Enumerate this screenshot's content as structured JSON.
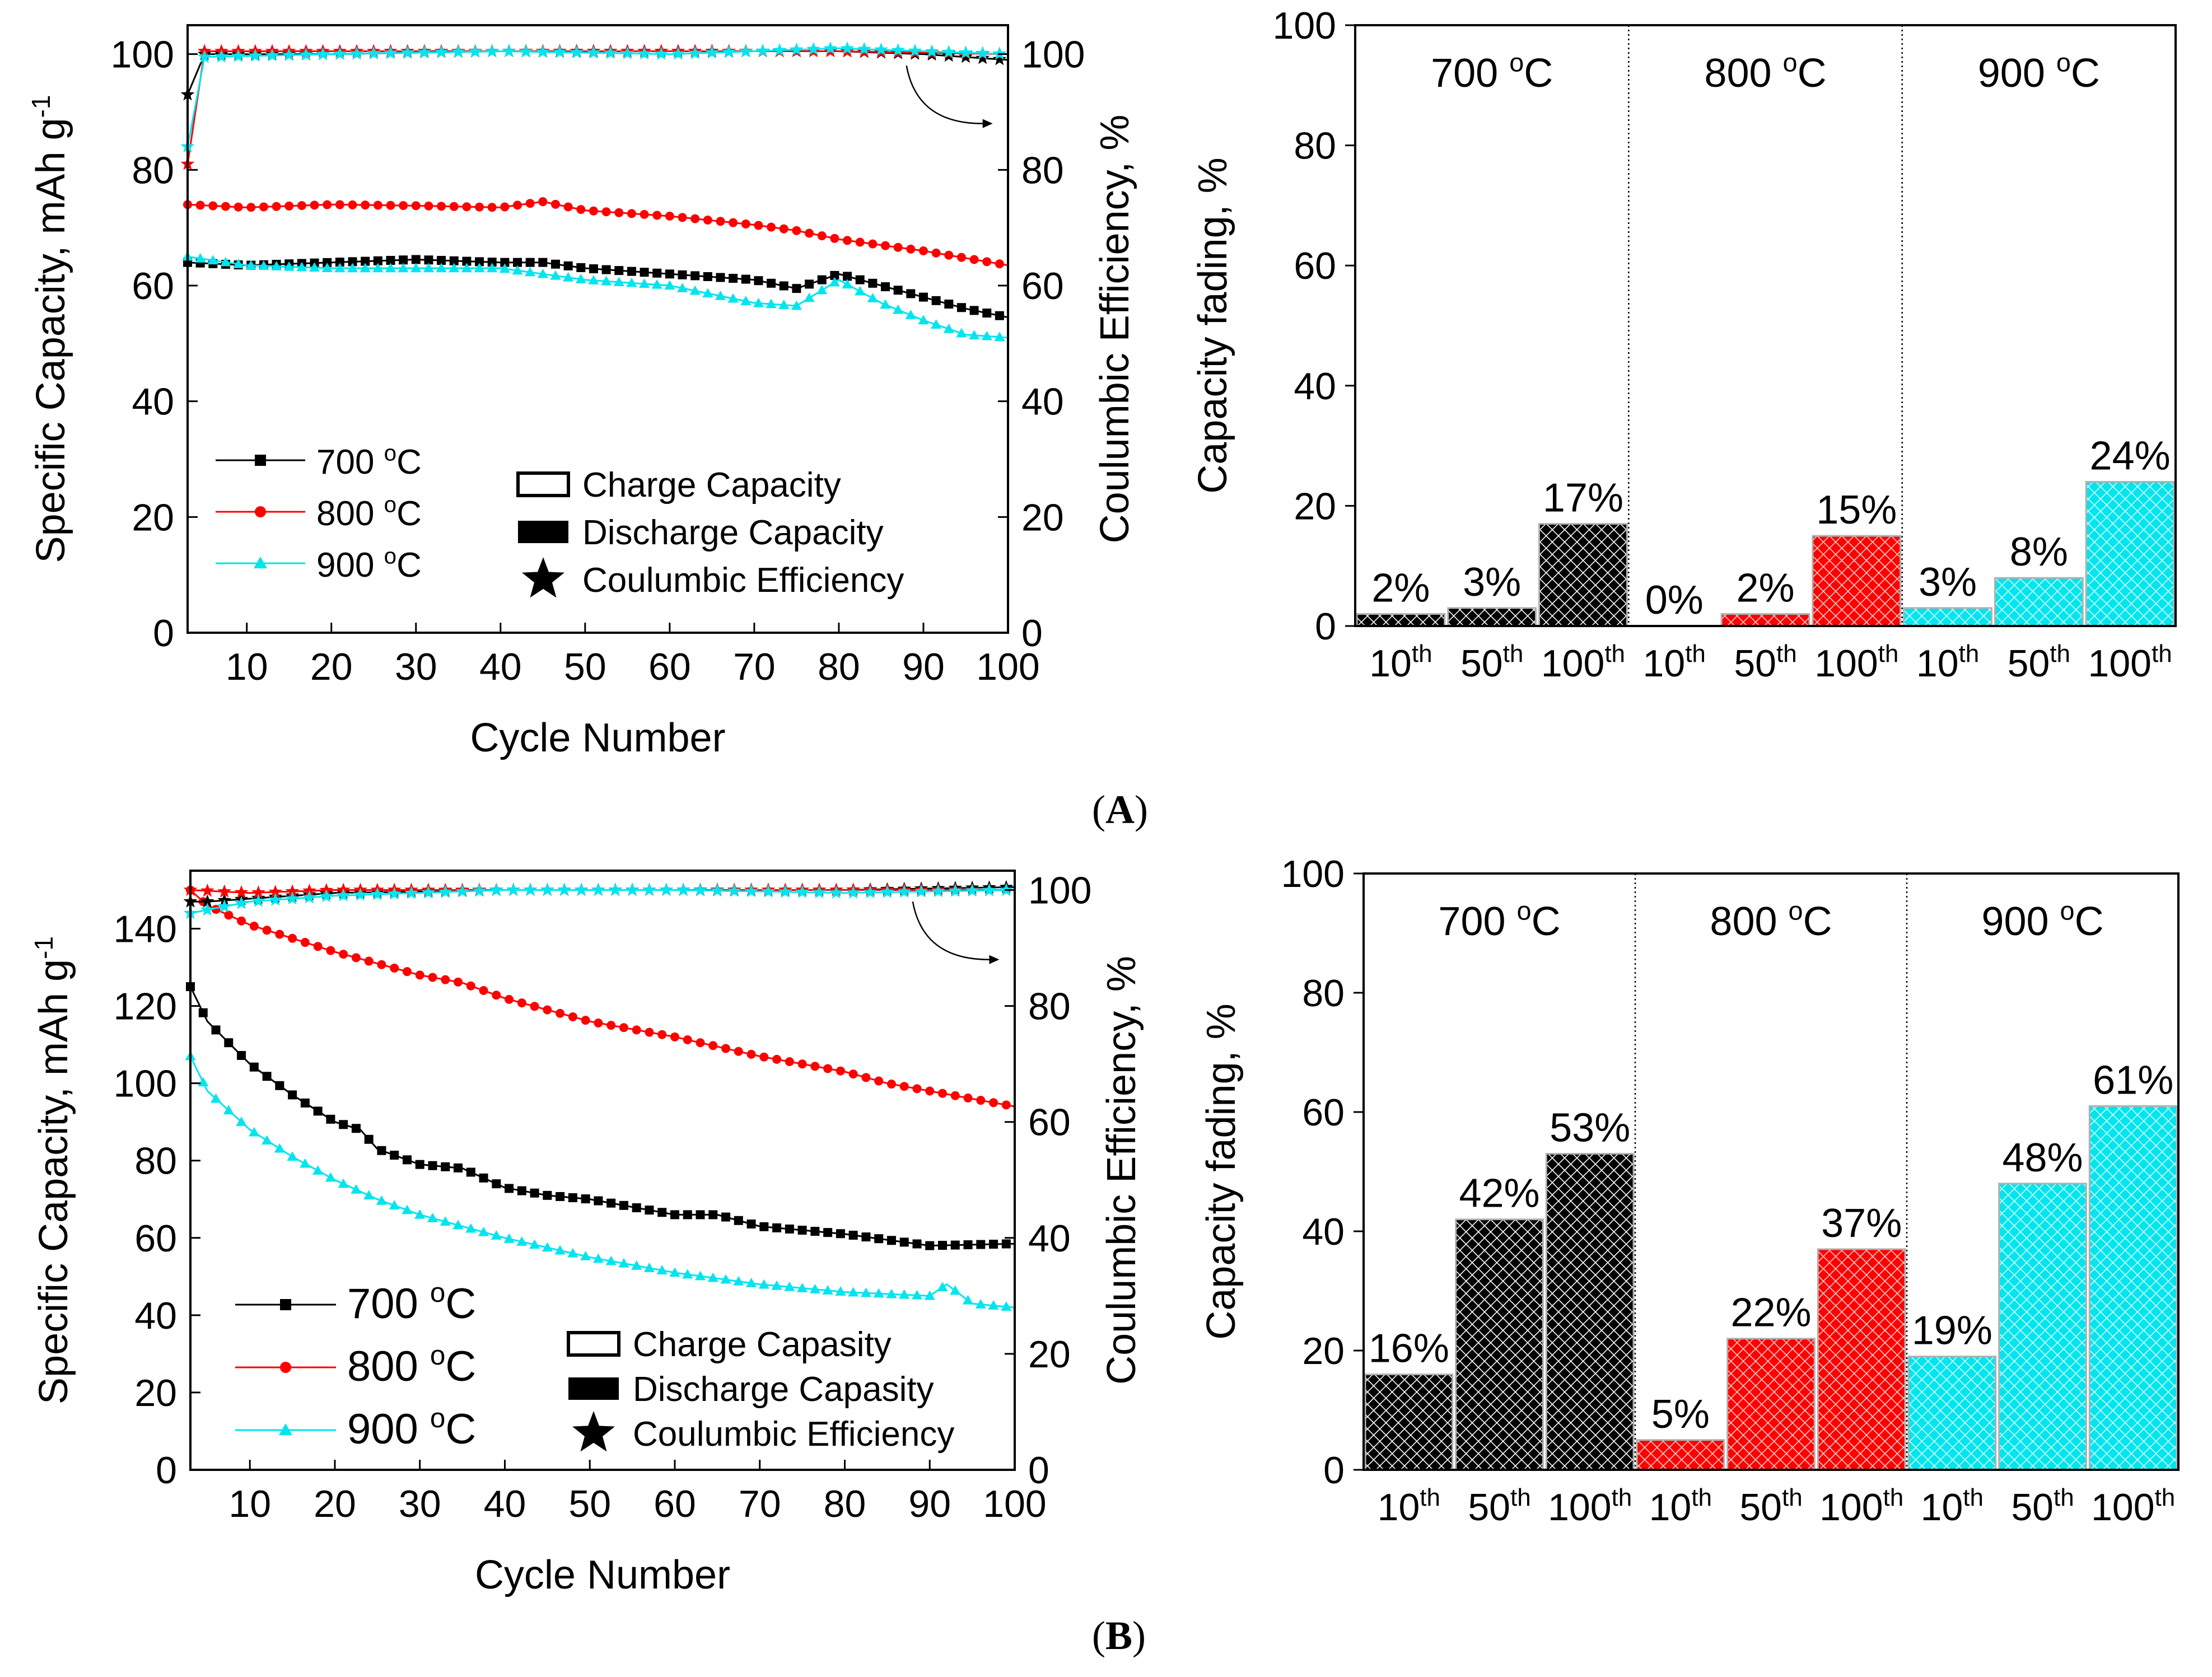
{
  "figure": {
    "panel_a_label": "A",
    "panel_b_label": "B",
    "superscript_c": "o",
    "unit_c": "C",
    "ord_suffix": "th"
  },
  "colors": {
    "t700": "#000000",
    "t800": "#ff0000",
    "t900": "#00e5ee"
  },
  "chart_data": [
    {
      "id": "A-cycling",
      "type": "line",
      "xlabel": "Cycle Number",
      "ylabel_left": "Specific Capacity, mAh g",
      "ylabel_left_sup": "-1",
      "ylabel_right": "Coulumbic Efficiency, %",
      "xlim": [
        3,
        100
      ],
      "ylim_left": [
        0,
        105
      ],
      "ylim_right": [
        0,
        105
      ],
      "xticks": [
        10,
        20,
        30,
        40,
        50,
        60,
        70,
        80,
        90,
        100
      ],
      "yticks_left": [
        0,
        20,
        40,
        60,
        80,
        100
      ],
      "yticks_right": [
        0,
        20,
        40,
        60,
        80,
        100
      ],
      "legend_temps": [
        "700",
        "800",
        "900"
      ],
      "legend_types": [
        "Charge Capacity",
        "Discharge Capacity",
        "Coulumbic Efficiency"
      ],
      "series": [
        {
          "name": "700 °C capacity",
          "temp": "700",
          "points": [
            [
              3,
              64
            ],
            [
              10,
              63.5
            ],
            [
              20,
              64
            ],
            [
              30,
              64.5
            ],
            [
              40,
              64
            ],
            [
              45,
              64
            ],
            [
              50,
              63
            ],
            [
              60,
              62
            ],
            [
              70,
              61
            ],
            [
              75,
              59.5
            ],
            [
              80,
              62
            ],
            [
              85,
              60
            ],
            [
              90,
              58
            ],
            [
              95,
              56
            ],
            [
              100,
              54.5
            ]
          ]
        },
        {
          "name": "800 °C capacity",
          "temp": "800",
          "points": [
            [
              3,
              74
            ],
            [
              10,
              73.5
            ],
            [
              20,
              74
            ],
            [
              30,
              73.8
            ],
            [
              40,
              73.5
            ],
            [
              45,
              74.5
            ],
            [
              50,
              73
            ],
            [
              60,
              72
            ],
            [
              70,
              70.5
            ],
            [
              75,
              69.5
            ],
            [
              80,
              68
            ],
            [
              90,
              66
            ],
            [
              100,
              63.5
            ]
          ]
        },
        {
          "name": "900 °C capacity",
          "temp": "900",
          "points": [
            [
              3,
              65
            ],
            [
              10,
              63.5
            ],
            [
              20,
              63
            ],
            [
              30,
              63
            ],
            [
              40,
              63
            ],
            [
              45,
              62
            ],
            [
              50,
              61
            ],
            [
              60,
              60
            ],
            [
              70,
              57
            ],
            [
              75,
              56.5
            ],
            [
              80,
              61
            ],
            [
              85,
              57
            ],
            [
              90,
              54
            ],
            [
              95,
              51.5
            ],
            [
              100,
              51
            ]
          ]
        },
        {
          "name": "700 °C CE",
          "temp": "700",
          "ce": true,
          "points": [
            [
              3,
              93
            ],
            [
              5,
              100
            ],
            [
              20,
              100
            ],
            [
              40,
              100.5
            ],
            [
              60,
              100.5
            ],
            [
              80,
              100.5
            ],
            [
              90,
              100
            ],
            [
              100,
              99
            ]
          ]
        },
        {
          "name": "800 °C CE",
          "temp": "800",
          "ce": true,
          "points": [
            [
              3,
              81
            ],
            [
              5,
              100.5
            ],
            [
              20,
              100.5
            ],
            [
              40,
              100.5
            ],
            [
              60,
              100.5
            ],
            [
              80,
              100.5
            ],
            [
              100,
              100
            ]
          ]
        },
        {
          "name": "900 °C CE",
          "temp": "900",
          "ce": true,
          "points": [
            [
              3,
              84
            ],
            [
              5,
              99.5
            ],
            [
              20,
              100
            ],
            [
              40,
              100.5
            ],
            [
              60,
              100
            ],
            [
              80,
              101
            ],
            [
              100,
              100
            ]
          ]
        }
      ]
    },
    {
      "id": "A-fading",
      "type": "bar",
      "ylabel": "Capacity fading, %",
      "ylim": [
        0,
        100
      ],
      "yticks": [
        0,
        20,
        40,
        60,
        80,
        100
      ],
      "groups": [
        {
          "temp": "700",
          "values": [
            2,
            3,
            17
          ],
          "labels": [
            "2%",
            "3%",
            "17%"
          ]
        },
        {
          "temp": "800",
          "values": [
            0,
            2,
            15
          ],
          "labels": [
            "0%",
            "2%",
            "15%"
          ]
        },
        {
          "temp": "900",
          "values": [
            3,
            8,
            24
          ],
          "labels": [
            "3%",
            "8%",
            "24%"
          ]
        }
      ],
      "categories": [
        "10",
        "50",
        "100"
      ]
    },
    {
      "id": "B-cycling",
      "type": "line",
      "xlabel": "Cycle Number",
      "ylabel_left": "Specific Capacity, mAh g",
      "ylabel_left_sup": "-1",
      "ylabel_right": "Coulumbic Efficiency, %",
      "xlim": [
        3,
        100
      ],
      "ylim_left": [
        0,
        155
      ],
      "ylim_right": [
        0,
        103.33
      ],
      "xticks": [
        10,
        20,
        30,
        40,
        50,
        60,
        70,
        80,
        90,
        100
      ],
      "yticks_left": [
        0,
        20,
        40,
        60,
        80,
        100,
        120,
        140
      ],
      "yticks_right": [
        0,
        20,
        40,
        60,
        80,
        100
      ],
      "legend_temps": [
        "700",
        "800",
        "900"
      ],
      "legend_types": [
        "Charge Capasity",
        "Discharge Capasity",
        "Coulumbic Efficiency"
      ],
      "series": [
        {
          "name": "700 °C capacity",
          "temp": "700",
          "points": [
            [
              3,
              125
            ],
            [
              5,
              116
            ],
            [
              10,
              105
            ],
            [
              15,
              97
            ],
            [
              20,
              90
            ],
            [
              23,
              88
            ],
            [
              25,
              83
            ],
            [
              30,
              79
            ],
            [
              35,
              78
            ],
            [
              40,
              73
            ],
            [
              45,
              71
            ],
            [
              50,
              70
            ],
            [
              55,
              68
            ],
            [
              60,
              66
            ],
            [
              65,
              66
            ],
            [
              70,
              63
            ],
            [
              80,
              61
            ],
            [
              90,
              58
            ],
            [
              100,
              58.5
            ]
          ]
        },
        {
          "name": "800 °C capacity",
          "temp": "800",
          "points": [
            [
              3,
              150
            ],
            [
              5,
              146
            ],
            [
              10,
              141
            ],
            [
              20,
              134
            ],
            [
              30,
              128
            ],
            [
              35,
              126
            ],
            [
              40,
              122
            ],
            [
              50,
              116
            ],
            [
              60,
              112
            ],
            [
              70,
              107
            ],
            [
              80,
              103
            ],
            [
              85,
              100
            ],
            [
              90,
              98
            ],
            [
              100,
              94
            ]
          ]
        },
        {
          "name": "900 °C capacity",
          "temp": "900",
          "points": [
            [
              3,
              107
            ],
            [
              5,
              98
            ],
            [
              10,
              88
            ],
            [
              15,
              81
            ],
            [
              20,
              75
            ],
            [
              25,
              70
            ],
            [
              30,
              66
            ],
            [
              40,
              60
            ],
            [
              50,
              55
            ],
            [
              60,
              51
            ],
            [
              70,
              48
            ],
            [
              80,
              46
            ],
            [
              90,
              45
            ],
            [
              92,
              48
            ],
            [
              95,
              43
            ],
            [
              100,
              42
            ]
          ]
        },
        {
          "name": "700 °C CE",
          "temp": "700",
          "ce": true,
          "points": [
            [
              3,
              98
            ],
            [
              5,
              98
            ],
            [
              20,
              99.5
            ],
            [
              40,
              100
            ],
            [
              60,
              100
            ],
            [
              80,
              100
            ],
            [
              100,
              100.5
            ]
          ]
        },
        {
          "name": "800 °C CE",
          "temp": "800",
          "ce": true,
          "points": [
            [
              3,
              100
            ],
            [
              10,
              99.5
            ],
            [
              20,
              100
            ],
            [
              40,
              100
            ],
            [
              60,
              100
            ],
            [
              80,
              100
            ],
            [
              100,
              100
            ]
          ]
        },
        {
          "name": "900 °C CE",
          "temp": "900",
          "ce": true,
          "points": [
            [
              3,
              96
            ],
            [
              10,
              98
            ],
            [
              20,
              99
            ],
            [
              40,
              100
            ],
            [
              60,
              100
            ],
            [
              80,
              99.5
            ],
            [
              100,
              100
            ]
          ]
        }
      ]
    },
    {
      "id": "B-fading",
      "type": "bar",
      "ylabel": "Capacity fading, %",
      "ylim": [
        0,
        100
      ],
      "yticks": [
        0,
        20,
        40,
        60,
        80,
        100
      ],
      "groups": [
        {
          "temp": "700",
          "values": [
            16,
            42,
            53
          ],
          "labels": [
            "16%",
            "42%",
            "53%"
          ]
        },
        {
          "temp": "800",
          "values": [
            5,
            22,
            37
          ],
          "labels": [
            "5%",
            "22%",
            "37%"
          ]
        },
        {
          "temp": "900",
          "values": [
            19,
            48,
            61
          ],
          "labels": [
            "19%",
            "48%",
            "61%"
          ]
        }
      ],
      "categories": [
        "10",
        "50",
        "100"
      ]
    }
  ]
}
